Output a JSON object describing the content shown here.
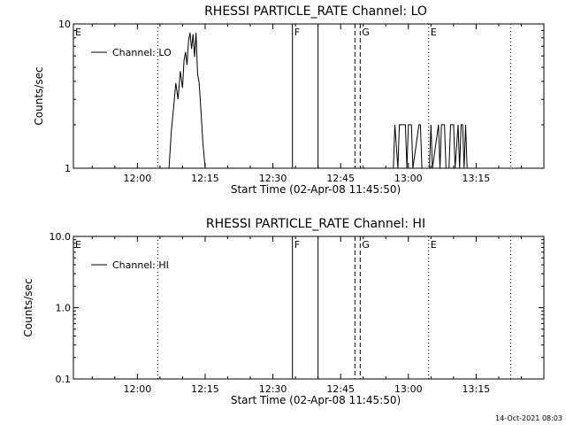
{
  "chart_data": [
    {
      "type": "line",
      "title": "RHESSI PARTICLE_RATE Channel: LO",
      "xlabel": "Start Time (02-Apr-08 11:45:50)",
      "ylabel": "Counts/sec",
      "yscale": "log",
      "xlim": [
        "11:45:50",
        "13:30:00"
      ],
      "ylim": [
        1,
        10
      ],
      "x_ticks": [
        "12:00",
        "12:15",
        "12:30",
        "12:45",
        "13:00",
        "13:15"
      ],
      "y_ticks": [
        "1",
        "10"
      ],
      "legend": {
        "entries": [
          "Channel: LO"
        ],
        "placement": "top-left"
      },
      "grid": false,
      "event_markers": [
        {
          "label": "E",
          "time": "11:45:50",
          "style": "dotted"
        },
        {
          "label": "",
          "time": "12:04:30",
          "style": "dotted"
        },
        {
          "label": "F",
          "time": "12:34:20",
          "style": "solid"
        },
        {
          "label": "",
          "time": "12:40:00",
          "style": "solid"
        },
        {
          "label": "",
          "time": "12:48:10",
          "style": "dashed"
        },
        {
          "label": "G",
          "time": "12:49:20",
          "style": "dashed"
        },
        {
          "label": "E",
          "time": "13:04:30",
          "style": "dotted"
        },
        {
          "label": "",
          "time": "13:22:40",
          "style": "dotted"
        }
      ],
      "series": [
        {
          "name": "Channel: LO",
          "segments": [
            {
              "x": [
                "12:07:00",
                "12:07:30",
                "12:08:00",
                "12:08:30",
                "12:09:00",
                "12:09:30",
                "12:10:00",
                "12:10:20",
                "12:10:40",
                "12:11:00",
                "12:11:20",
                "12:11:40",
                "12:12:00",
                "12:12:20",
                "12:12:40",
                "12:13:00",
                "12:13:20",
                "12:13:40",
                "12:14:00",
                "12:14:30",
                "12:15:00"
              ],
              "y": [
                1.0,
                1.8,
                2.6,
                3.9,
                3.0,
                4.7,
                3.6,
                5.6,
                6.4,
                5.2,
                7.7,
                8.7,
                6.7,
                8.5,
                5.9,
                8.7,
                4.5,
                3.9,
                2.7,
                1.5,
                1.0
              ]
            },
            {
              "x": [
                "12:56:40",
                "12:57:00",
                "12:57:40",
                "12:58:00",
                "12:59:20",
                "12:59:40",
                "13:00:00",
                "13:00:40",
                "13:01:00",
                "13:02:20",
                "13:02:40",
                "13:03:00",
                "13:04:40",
                "13:05:00",
                "13:05:20",
                "13:06:40",
                "13:07:00",
                "13:07:20",
                "13:08:00",
                "13:08:20",
                "13:09:00",
                "13:09:20",
                "13:10:00",
                "13:10:20",
                "13:11:00",
                "13:11:20",
                "13:11:40",
                "13:12:00",
                "13:12:20",
                "13:12:40",
                "13:13:00"
              ],
              "y": [
                1,
                2,
                1,
                2,
                2,
                1,
                2,
                2,
                1,
                2,
                2,
                1,
                1,
                2,
                1,
                2,
                1,
                2,
                2,
                1,
                1,
                2,
                2,
                1,
                2,
                1,
                2,
                2,
                1,
                2,
                1
              ]
            }
          ]
        }
      ]
    },
    {
      "type": "line",
      "title": "RHESSI PARTICLE_RATE Channel: HI",
      "xlabel": "Start Time (02-Apr-08 11:45:50)",
      "ylabel": "Counts/sec",
      "yscale": "log",
      "xlim": [
        "11:45:50",
        "13:30:00"
      ],
      "ylim": [
        0.1,
        10
      ],
      "x_ticks": [
        "12:00",
        "12:15",
        "12:30",
        "12:45",
        "13:00",
        "13:15"
      ],
      "y_ticks": [
        "0.1",
        "1.0",
        "10.0"
      ],
      "legend": {
        "entries": [
          "Channel: HI"
        ],
        "placement": "top-left"
      },
      "grid": false,
      "event_markers": [
        {
          "label": "E",
          "time": "11:45:50",
          "style": "dotted"
        },
        {
          "label": "",
          "time": "12:04:30",
          "style": "dotted"
        },
        {
          "label": "F",
          "time": "12:34:20",
          "style": "solid"
        },
        {
          "label": "",
          "time": "12:40:00",
          "style": "solid"
        },
        {
          "label": "",
          "time": "12:48:10",
          "style": "dashed"
        },
        {
          "label": "G",
          "time": "12:49:20",
          "style": "dashed"
        },
        {
          "label": "E",
          "time": "13:04:30",
          "style": "dotted"
        },
        {
          "label": "",
          "time": "13:22:40",
          "style": "dotted"
        }
      ],
      "series": [
        {
          "name": "Channel: HI",
          "segments": []
        }
      ]
    }
  ],
  "footer": {
    "timestamp": "14-Oct-2021 08:03"
  }
}
